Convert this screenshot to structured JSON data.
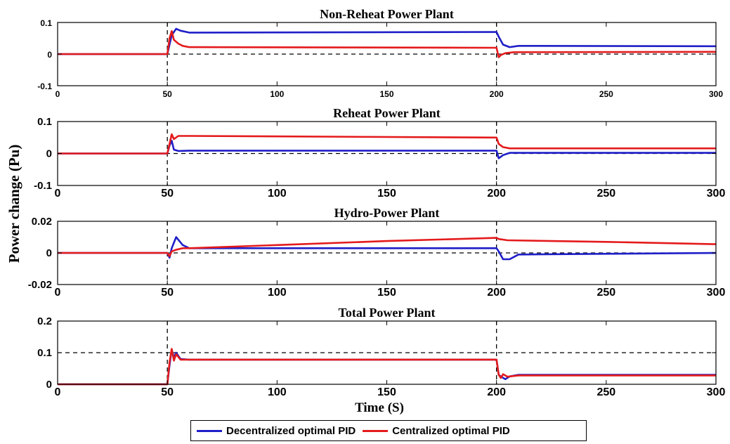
{
  "chart_data": {
    "type": "line",
    "ylabel": "Power change (Pu)",
    "xlabel": "Time (S)",
    "legend": {
      "placement": "bottom-center",
      "entries": [
        {
          "name": "Decentralized optimal PID",
          "color": "#1f1fc8"
        },
        {
          "name": "Centralized optimal PID",
          "color": "#e41a1c"
        }
      ]
    },
    "colors": {
      "decentralized": "#1f1fc8",
      "centralized": "#e41a1c",
      "reference": "#000000"
    },
    "reference_lines": {
      "vertical_x": [
        50,
        200
      ],
      "style": "dashed"
    },
    "panels": [
      {
        "title": "Non-Reheat Power Plant",
        "xlim": [
          0,
          300
        ],
        "ylim": [
          -0.1,
          0.1
        ],
        "xticks": [
          "0",
          "50",
          "100",
          "150",
          "200",
          "250",
          "300"
        ],
        "yticks": [
          "-0.1",
          "0",
          "0.1"
        ],
        "hline": 0,
        "series": [
          {
            "name": "Decentralized optimal PID",
            "x": [
              0,
              50,
              51,
              52,
              54,
              56,
              60,
              200,
              201,
              203,
              206,
              210,
              300
            ],
            "y": [
              0,
              0,
              0.03,
              0.06,
              0.08,
              0.074,
              0.068,
              0.07,
              0.055,
              0.03,
              0.022,
              0.026,
              0.025
            ]
          },
          {
            "name": "Centralized optimal PID",
            "x": [
              0,
              50,
              51,
              52,
              53,
              55,
              57,
              60,
              200,
              201,
              202,
              204,
              208,
              300
            ],
            "y": [
              0,
              0,
              0.05,
              0.073,
              0.045,
              0.033,
              0.026,
              0.022,
              0.02,
              -0.01,
              -0.003,
              0.003,
              0.006,
              0.007
            ]
          }
        ]
      },
      {
        "title": "Reheat Power Plant",
        "xlim": [
          0,
          300
        ],
        "ylim": [
          -0.1,
          0.1
        ],
        "xticks": [
          "0",
          "50",
          "100",
          "150",
          "200",
          "250",
          "300"
        ],
        "yticks": [
          "-0.1",
          "0",
          "0.1"
        ],
        "hline": 0,
        "series": [
          {
            "name": "Decentralized optimal PID",
            "x": [
              0,
              50,
              51,
              52,
              53,
              55,
              60,
              200,
              201,
              203,
              206,
              300
            ],
            "y": [
              0,
              0,
              0.025,
              0.04,
              0.012,
              0.008,
              0.009,
              0.009,
              -0.015,
              -0.005,
              0.002,
              0.002
            ]
          },
          {
            "name": "Centralized optimal PID",
            "x": [
              0,
              50,
              51,
              52,
              53,
              55,
              60,
              200,
              201,
              203,
              206,
              300
            ],
            "y": [
              0,
              0,
              0.03,
              0.06,
              0.045,
              0.055,
              0.055,
              0.05,
              0.03,
              0.02,
              0.016,
              0.016
            ]
          }
        ]
      },
      {
        "title": "Hydro-Power Plant",
        "xlim": [
          0,
          300
        ],
        "ylim": [
          -0.02,
          0.02
        ],
        "xticks": [
          "0",
          "50",
          "100",
          "150",
          "200",
          "250",
          "300"
        ],
        "yticks": [
          "-0.02",
          "0",
          "0.02"
        ],
        "hline": 0,
        "series": [
          {
            "name": "Decentralized optimal PID",
            "x": [
              0,
              50,
              51,
              52,
              54,
              57,
              60,
              200,
              201,
              203,
              206,
              210,
              300
            ],
            "y": [
              0,
              0,
              -0.003,
              0.003,
              0.01,
              0.005,
              0.003,
              0.003,
              0.001,
              -0.004,
              -0.004,
              -0.001,
              0
            ]
          },
          {
            "name": "Centralized optimal PID",
            "x": [
              0,
              50,
              51,
              52,
              54,
              57,
              60,
              100,
              150,
              200,
              201,
              205,
              250,
              300
            ],
            "y": [
              0,
              0,
              -0.002,
              0.001,
              0.002,
              0.003,
              0.003,
              0.005,
              0.0075,
              0.0095,
              0.0088,
              0.008,
              0.007,
              0.0055
            ]
          }
        ]
      },
      {
        "title": "Total Power Plant",
        "xlim": [
          0,
          300
        ],
        "ylim": [
          0,
          0.2
        ],
        "xticks": [
          "0",
          "50",
          "100",
          "150",
          "200",
          "250",
          "300"
        ],
        "yticks": [
          "0",
          "0.1",
          "0.2"
        ],
        "hline": 0.1,
        "series": [
          {
            "name": "Decentralized optimal PID",
            "x": [
              0,
              50,
              51,
              52,
              53,
              54,
              56,
              60,
              200,
              201,
              202,
              204,
              206,
              210,
              300
            ],
            "y": [
              0,
              0,
              0.06,
              0.11,
              0.085,
              0.1,
              0.08,
              0.078,
              0.078,
              0.03,
              0.025,
              0.016,
              0.025,
              0.03,
              0.03
            ]
          },
          {
            "name": "Centralized optimal PID",
            "x": [
              0,
              50,
              51,
              52,
              53,
              54,
              56,
              60,
              200,
              201,
              202,
              203,
              205,
              210,
              300
            ],
            "y": [
              0,
              0,
              0.07,
              0.112,
              0.075,
              0.095,
              0.078,
              0.078,
              0.078,
              0.03,
              0.02,
              0.032,
              0.024,
              0.028,
              0.028
            ]
          }
        ]
      }
    ]
  }
}
